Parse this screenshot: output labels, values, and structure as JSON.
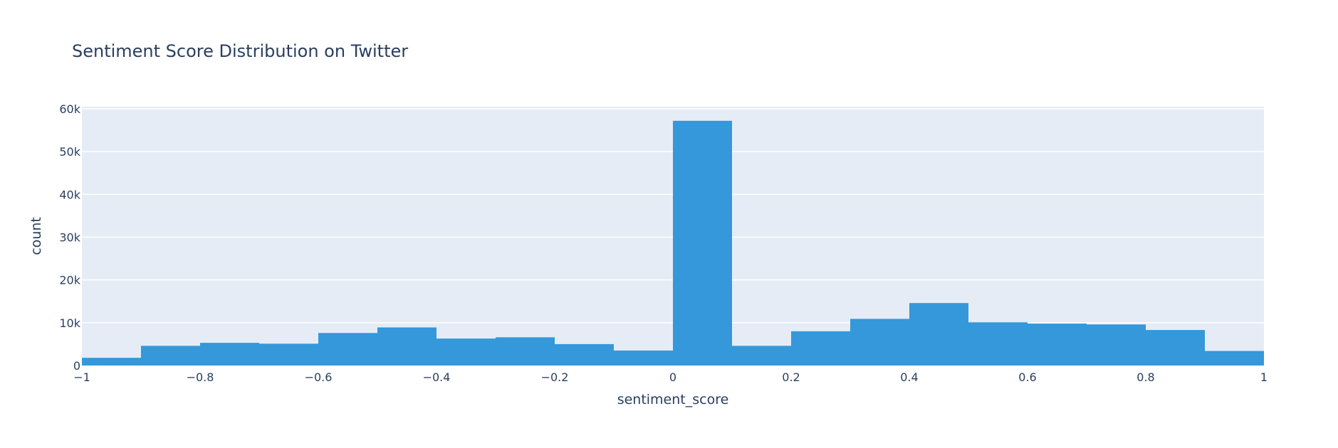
{
  "chart_data": {
    "type": "bar",
    "title": "Sentiment Score Distribution on Twitter",
    "xlabel": "sentiment_score",
    "ylabel": "count",
    "xlim": [
      -1,
      1
    ],
    "ylim": [
      0,
      60500
    ],
    "x_ticks": [
      -1,
      -0.8,
      -0.6,
      -0.4,
      -0.2,
      0,
      0.2,
      0.4,
      0.6,
      0.8,
      1
    ],
    "x_tick_labels": [
      "−1",
      "−0.8",
      "−0.6",
      "−0.4",
      "−0.2",
      "0",
      "0.2",
      "0.4",
      "0.6",
      "0.8",
      "1"
    ],
    "y_ticks": [
      0,
      10000,
      20000,
      30000,
      40000,
      50000,
      60000
    ],
    "y_tick_labels": [
      "0",
      "10k",
      "20k",
      "30k",
      "40k",
      "50k",
      "60k"
    ],
    "bin_width": 0.1,
    "bins": [
      -1.0,
      -0.9,
      -0.8,
      -0.7,
      -0.6,
      -0.5,
      -0.4,
      -0.3,
      -0.2,
      -0.1,
      0.0,
      0.1,
      0.2,
      0.3,
      0.4,
      0.5,
      0.6,
      0.7,
      0.8,
      0.9
    ],
    "values": [
      1800,
      4600,
      5300,
      5100,
      7600,
      8900,
      6300,
      6600,
      5000,
      3500,
      57200,
      4600,
      8000,
      10900,
      14600,
      10100,
      9800,
      9600,
      8300,
      3400
    ],
    "grid": true,
    "legend": "none",
    "colors": {
      "bar": "#3498db",
      "plot_bg": "#e5ecf6",
      "grid": "#ffffff",
      "text": "#2a3f5f"
    }
  }
}
